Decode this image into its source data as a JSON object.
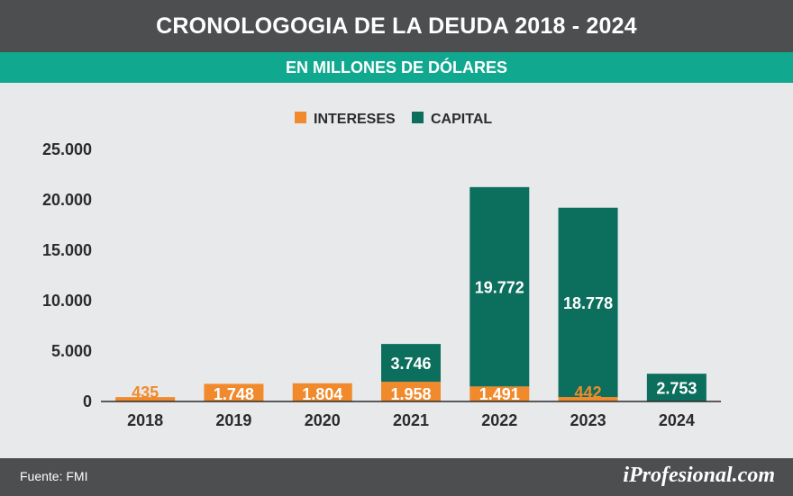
{
  "header": {
    "title": "CRONOLOGOGIA DE LA DEUDA 2018  - 2024",
    "subtitle": "EN MILLONES DE DÓLARES"
  },
  "footer": {
    "source": "Fuente: FMI",
    "brand": "iProfesional.com"
  },
  "colors": {
    "intereses": "#f08a2c",
    "capital": "#0c6e5c",
    "header_bg": "#4d4e50",
    "subheader_bg": "#10a88f",
    "background": "#e8e9eb"
  },
  "chart_data": {
    "type": "bar",
    "stacked": true,
    "title": "",
    "xlabel": "",
    "ylabel": "",
    "ylim": [
      0,
      25000
    ],
    "y_ticks": [
      "0",
      "5.000",
      "10.000",
      "15.000",
      "20.000",
      "25.000"
    ],
    "y_tick_values": [
      0,
      5000,
      10000,
      15000,
      20000,
      25000
    ],
    "categories": [
      "2018",
      "2019",
      "2020",
      "2021",
      "2022",
      "2023",
      "2024"
    ],
    "legend_position": "top-center",
    "grid": false,
    "series": [
      {
        "name": "INTERESES",
        "color": "#f08a2c",
        "values": [
          435,
          1748,
          1804,
          1958,
          1491,
          442,
          0
        ],
        "labels": [
          "435",
          "1.748",
          "1.804",
          "1.958",
          "1.491",
          "442",
          ""
        ]
      },
      {
        "name": "CAPITAL",
        "color": "#0c6e5c",
        "values": [
          0,
          0,
          0,
          3746,
          19772,
          18778,
          2753
        ],
        "labels": [
          "",
          "",
          "",
          "3.746",
          "19.772",
          "18.778",
          "2.753"
        ]
      }
    ]
  }
}
